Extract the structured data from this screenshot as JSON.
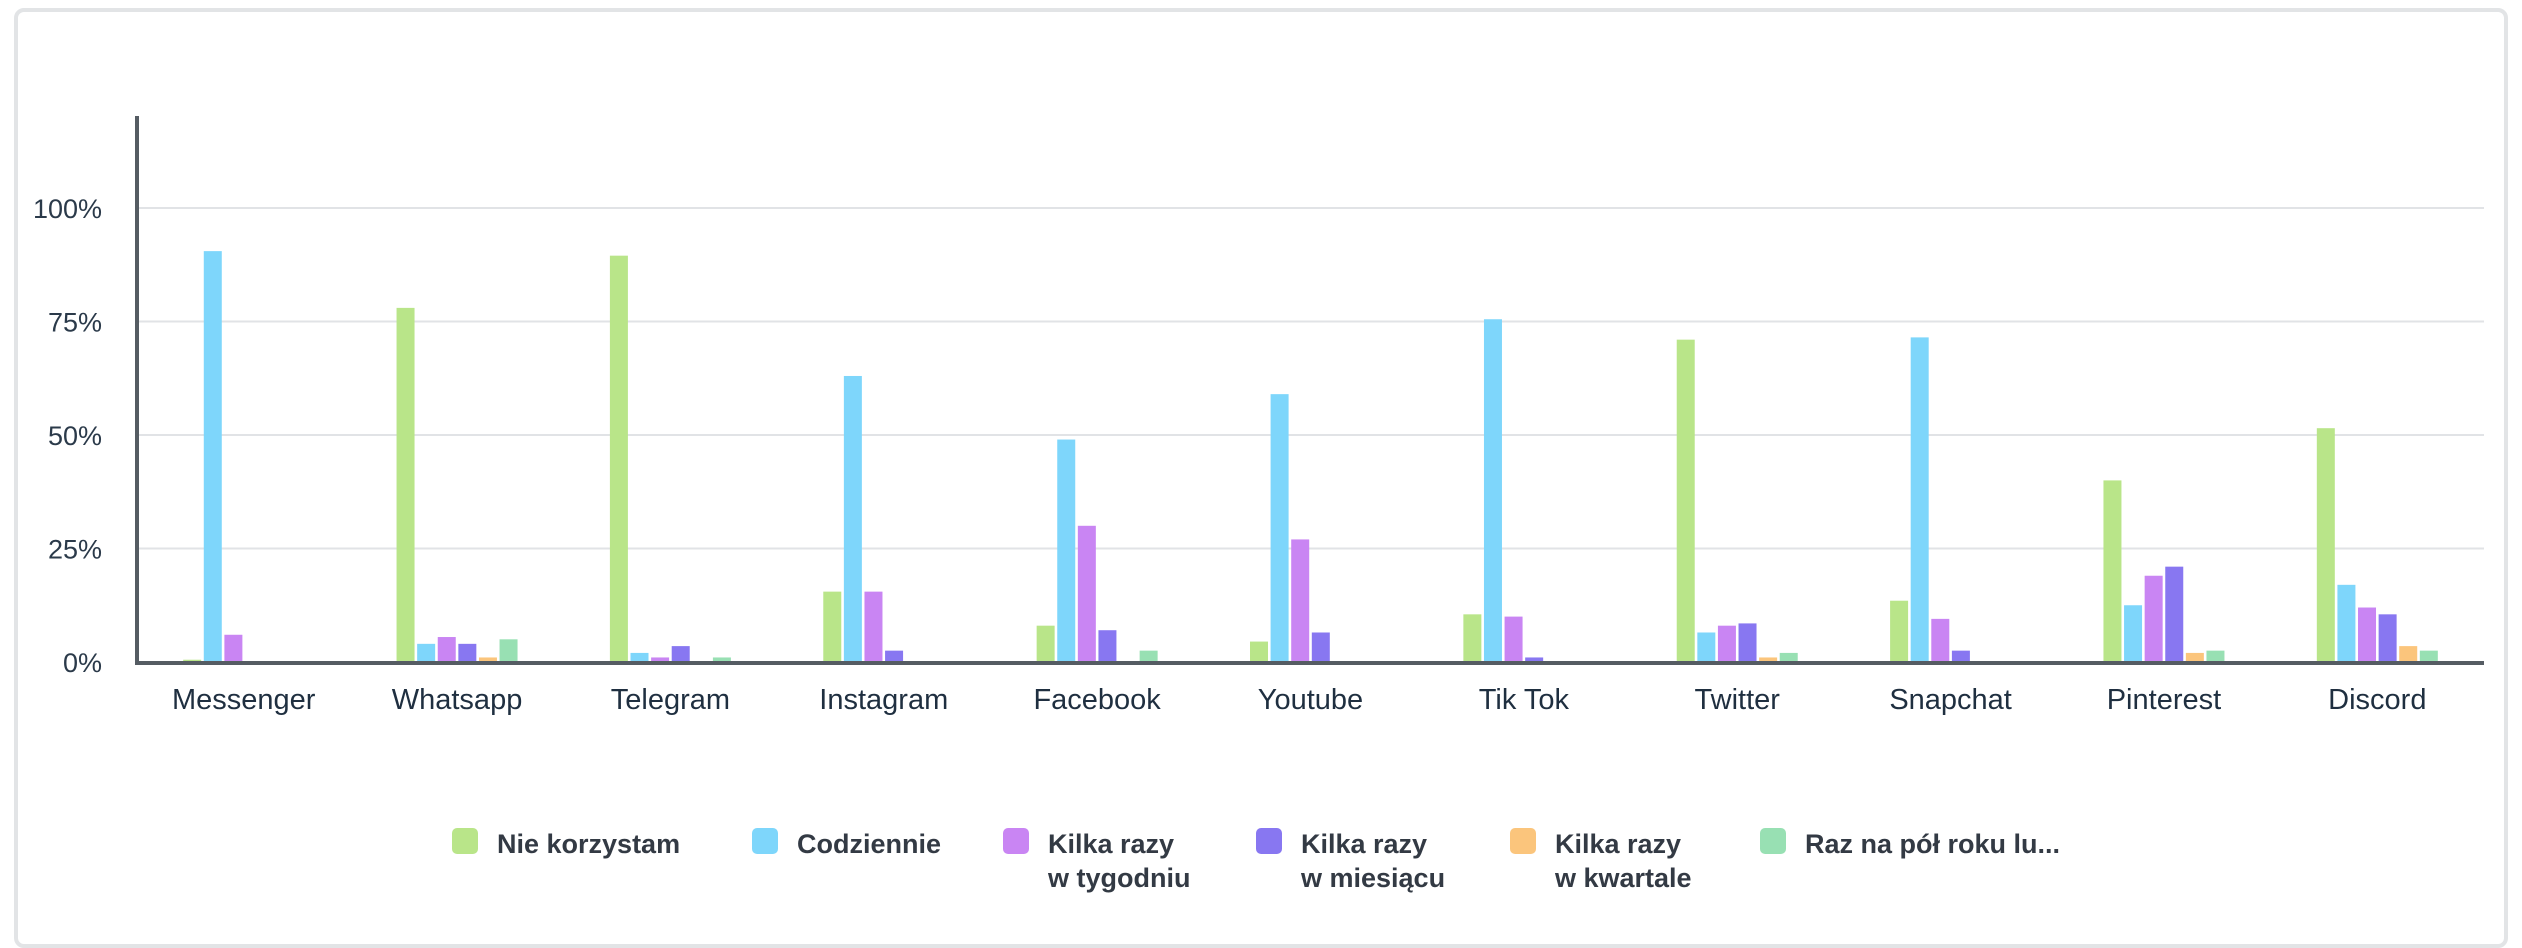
{
  "chart_data": {
    "type": "bar",
    "categories": [
      "Messenger",
      "Whatsapp",
      "Telegram",
      "Instagram",
      "Facebook",
      "Youtube",
      "Tik Tok",
      "Twitter",
      "Snapchat",
      "Pinterest",
      "Discord"
    ],
    "series": [
      {
        "name": "Nie korzystam",
        "legend_lines": [
          "Nie korzystam"
        ],
        "color": "#b9e589",
        "values": [
          0.5,
          78,
          89.5,
          15.5,
          8,
          4.5,
          10.5,
          71,
          13.5,
          40,
          51.5
        ]
      },
      {
        "name": "Codziennie",
        "legend_lines": [
          "Codziennie"
        ],
        "color": "#7ed6fb",
        "values": [
          90.5,
          4,
          2,
          63,
          49,
          59,
          75.5,
          6.5,
          71.5,
          12.5,
          17
        ]
      },
      {
        "name": "Kilka razy w tygodniu",
        "legend_lines": [
          "Kilka razy",
          "w tygodniu"
        ],
        "color": "#c985f3",
        "values": [
          6,
          5.5,
          1,
          15.5,
          30,
          27,
          10,
          8,
          9.5,
          19,
          12
        ]
      },
      {
        "name": "Kilka razy w miesiącu",
        "legend_lines": [
          "Kilka razy",
          "w miesiącu"
        ],
        "color": "#8877f1",
        "values": [
          0,
          4,
          3.5,
          2.5,
          7,
          6.5,
          1,
          8.5,
          2.5,
          21,
          10.5
        ]
      },
      {
        "name": "Kilka razy w kwartale",
        "legend_lines": [
          "Kilka razy",
          "w kwartale"
        ],
        "color": "#fbc57c",
        "values": [
          0,
          1,
          0,
          0,
          0,
          0,
          0,
          1,
          0,
          2,
          3.5
        ]
      },
      {
        "name": "Raz na pół roku lu...",
        "legend_lines": [
          "Raz na pół roku lu..."
        ],
        "color": "#98e0b3",
        "values": [
          0,
          5,
          1,
          0,
          2.5,
          0,
          0,
          2,
          0,
          2.5,
          2.5
        ]
      }
    ],
    "yticks": [
      "0%",
      "25%",
      "50%",
      "75%",
      "100%"
    ],
    "ytick_values": [
      0,
      25,
      50,
      75,
      100
    ],
    "ylim": [
      0,
      120
    ],
    "xlabel": "",
    "ylabel": "",
    "title": "",
    "grid": true,
    "legend_position": "bottom"
  }
}
